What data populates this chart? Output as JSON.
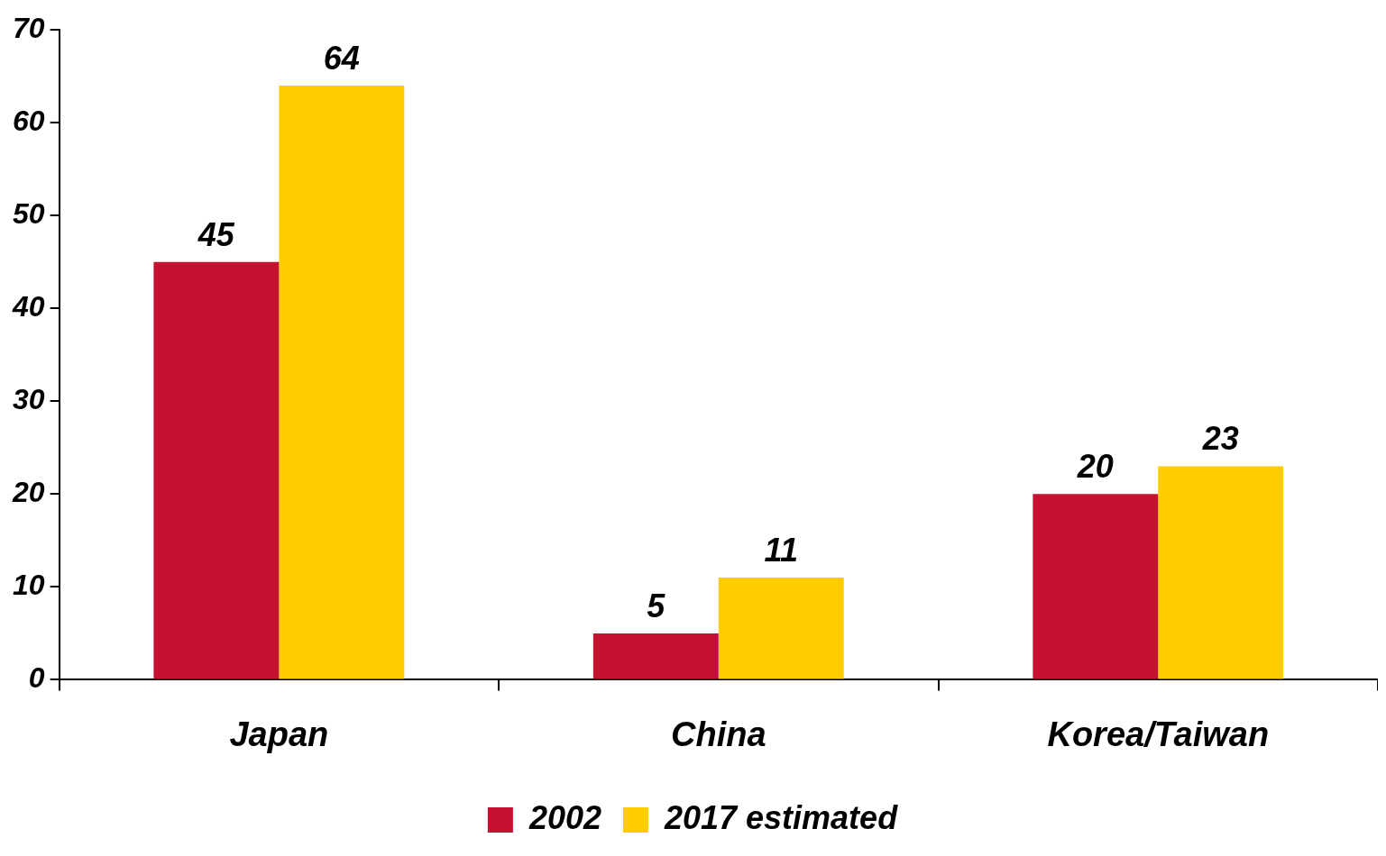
{
  "chart_data": {
    "type": "bar",
    "categories": [
      "Japan",
      "China",
      "Korea/Taiwan"
    ],
    "series": [
      {
        "name": "2002",
        "color": "#c41230",
        "values": [
          45,
          5,
          20
        ]
      },
      {
        "name": "2017 estimated",
        "color": "#ffcc00",
        "values": [
          64,
          11,
          23
        ]
      }
    ],
    "ylim": [
      0,
      70
    ],
    "yticks": [
      0,
      10,
      20,
      30,
      40,
      50,
      60,
      70
    ],
    "grid": false,
    "legend": "bottom",
    "data_labels": true
  }
}
